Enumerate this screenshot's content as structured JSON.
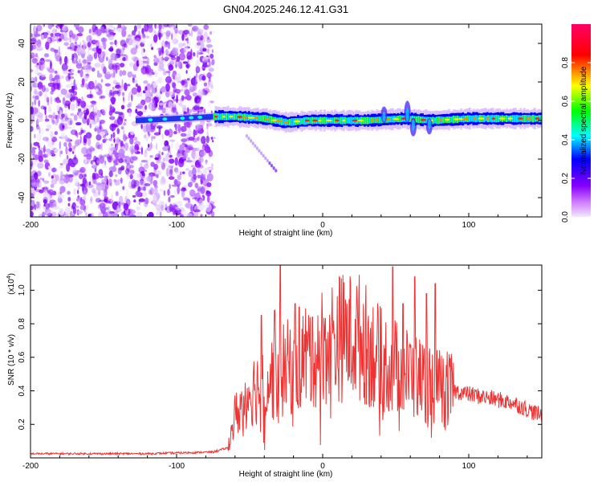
{
  "title": "GN04.2025.246.12.41.G31",
  "chart_data": [
    {
      "type": "heatmap",
      "name": "spectrogram",
      "xlabel": "Height of straight line (km)",
      "ylabel": "Frequency (Hz)",
      "xlim": [
        -200,
        150
      ],
      "ylim": [
        -50,
        50
      ],
      "xticks": [
        -200,
        -100,
        0,
        100
      ],
      "xtick_labels": [
        "-200",
        "-100",
        "0",
        "100"
      ],
      "yticks": [
        -40,
        -20,
        0,
        20,
        40
      ],
      "ytick_labels": [
        "-40",
        "-20",
        "0",
        "20",
        "40"
      ],
      "noise_region_x": [
        -200,
        -75
      ],
      "signal_region_x": [
        -75,
        150
      ],
      "main_band_center_hz": [
        {
          "x": -128,
          "f": 0
        },
        {
          "x": -75,
          "f": 2
        },
        {
          "x": -60,
          "f": 2
        },
        {
          "x": -40,
          "f": 1
        },
        {
          "x": -25,
          "f": -1
        },
        {
          "x": -10,
          "f": 0
        },
        {
          "x": 0,
          "f": 0
        },
        {
          "x": 30,
          "f": 0
        },
        {
          "x": 55,
          "f": 1
        },
        {
          "x": 75,
          "f": 0
        },
        {
          "x": 100,
          "f": 1
        },
        {
          "x": 150,
          "f": 1
        }
      ],
      "weak_trace": [
        {
          "x": -52,
          "f": -8
        },
        {
          "x": -32,
          "f": -26
        }
      ],
      "colorbar": {
        "label": "Normalized spectral amplitude",
        "ticks": [
          0.0,
          0.2,
          0.4,
          0.6,
          0.8
        ],
        "tick_labels": [
          "0.0",
          "0.2",
          "0.4",
          "0.6",
          "0.8"
        ],
        "range": [
          0,
          1
        ],
        "colors": [
          "#f3e6ff",
          "#8800ff",
          "#0000ff",
          "#00ffff",
          "#00ff00",
          "#ffff00",
          "#ff0000",
          "#ff0066"
        ]
      }
    },
    {
      "type": "line",
      "name": "snr",
      "xlabel": "Height of straight line (km)",
      "ylabel": "SNR (10 * v/v)",
      "exponent_label": "(x10",
      "exponent": "4",
      "exponent_close": ")",
      "xlim": [
        -200,
        150
      ],
      "ylim": [
        0,
        1.15
      ],
      "xticks": [
        -200,
        -100,
        0,
        100
      ],
      "xtick_labels": [
        "-200",
        "-100",
        "0",
        "100"
      ],
      "yticks": [
        0.2,
        0.4,
        0.6,
        0.8,
        1.0
      ],
      "ytick_labels": [
        "0.2",
        "0.4",
        "0.6",
        "0.8",
        "1.0"
      ],
      "color": "#ee3333",
      "envelope": [
        {
          "x": -200,
          "v": 0.025
        },
        {
          "x": -120,
          "v": 0.025
        },
        {
          "x": -75,
          "v": 0.035
        },
        {
          "x": -65,
          "v": 0.06
        },
        {
          "x": -60,
          "v": 0.25
        },
        {
          "x": -50,
          "v": 0.4
        },
        {
          "x": -30,
          "v": 0.5
        },
        {
          "x": -10,
          "v": 0.62
        },
        {
          "x": 10,
          "v": 0.72
        },
        {
          "x": 25,
          "v": 0.72
        },
        {
          "x": 40,
          "v": 0.58
        },
        {
          "x": 60,
          "v": 0.5
        },
        {
          "x": 80,
          "v": 0.42
        },
        {
          "x": 100,
          "v": 0.38
        },
        {
          "x": 130,
          "v": 0.33
        },
        {
          "x": 150,
          "v": 0.25
        }
      ],
      "spikes": [
        {
          "x": -29,
          "v": 1.15
        },
        {
          "x": -33,
          "v": 0.88
        },
        {
          "x": -42,
          "v": 0.85
        },
        {
          "x": -19,
          "v": 0.92
        },
        {
          "x": -16,
          "v": 0.9
        },
        {
          "x": -7,
          "v": 0.84
        },
        {
          "x": 48,
          "v": 1.14
        },
        {
          "x": 63,
          "v": 1.08
        },
        {
          "x": 71,
          "v": 0.98
        },
        {
          "x": 77,
          "v": 1.04
        },
        {
          "x": 55,
          "v": 0.92
        }
      ]
    }
  ]
}
